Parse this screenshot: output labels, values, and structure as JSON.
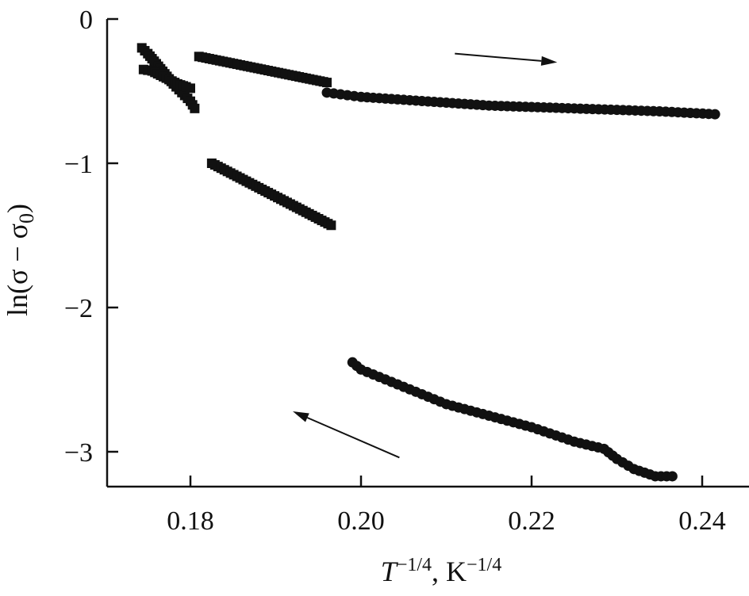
{
  "chart_data": {
    "type": "scatter",
    "title": "",
    "xlabel_main": "T",
    "xlabel_exp1": "−1/4",
    "xlabel_mid": ", K",
    "xlabel_exp2": "−1/4",
    "ylabel_main": "ln(σ − σ",
    "ylabel_sub": "0",
    "ylabel_end": ")",
    "xlim": [
      0.17,
      0.243
    ],
    "ylim": [
      -3.25,
      0.0
    ],
    "xticks": [
      0.18,
      0.2,
      0.22,
      0.24
    ],
    "xtick_labels": [
      "0.18",
      "0.20",
      "0.22",
      "0.24"
    ],
    "yticks": [
      0,
      -1,
      -2,
      -3
    ],
    "ytick_labels": [
      "0",
      "−1",
      "−2",
      "−3"
    ],
    "grid": false,
    "series": [
      {
        "marker": "square",
        "color": "#111111",
        "segments": [
          {
            "x": [
              0.1743,
              0.175,
              0.176,
              0.177,
              0.178,
              0.179,
              0.18,
              0.1805
            ],
            "y": [
              -0.2,
              -0.24,
              -0.31,
              -0.38,
              -0.45,
              -0.51,
              -0.57,
              -0.62
            ]
          },
          {
            "x": [
              0.1745,
              0.1755,
              0.1765,
              0.1775,
              0.1785,
              0.1795,
              0.18
            ],
            "y": [
              -0.35,
              -0.36,
              -0.39,
              -0.42,
              -0.45,
              -0.47,
              -0.48
            ]
          },
          {
            "x": [
              0.181,
              0.196
            ],
            "y": [
              -0.26,
              -0.44
            ]
          },
          {
            "x": [
              0.1825,
              0.1965
            ],
            "y": [
              -1.0,
              -1.43
            ]
          }
        ]
      },
      {
        "marker": "circle",
        "color": "#111111",
        "segments": [
          {
            "x": [
              0.196,
              0.2,
              0.205,
              0.21,
              0.215,
              0.22,
              0.225,
              0.23,
              0.235,
              0.2415
            ],
            "y": [
              -0.51,
              -0.54,
              -0.56,
              -0.58,
              -0.6,
              -0.61,
              -0.62,
              -0.63,
              -0.64,
              -0.66
            ]
          },
          {
            "x": [
              0.199,
              0.2,
              0.205,
              0.21,
              0.215,
              0.22,
              0.225,
              0.2285,
              0.23,
              0.232,
              0.2345,
              0.2365
            ],
            "y": [
              -2.38,
              -2.43,
              -2.55,
              -2.67,
              -2.75,
              -2.83,
              -2.93,
              -2.98,
              -3.05,
              -3.12,
              -3.17,
              -3.17
            ]
          }
        ]
      }
    ],
    "annotations": [
      {
        "type": "arrow",
        "from": [
          0.211,
          -0.24
        ],
        "to": [
          0.223,
          -0.3
        ]
      },
      {
        "type": "arrow",
        "from": [
          0.2045,
          -3.04
        ],
        "to": [
          0.192,
          -2.72
        ]
      }
    ]
  }
}
